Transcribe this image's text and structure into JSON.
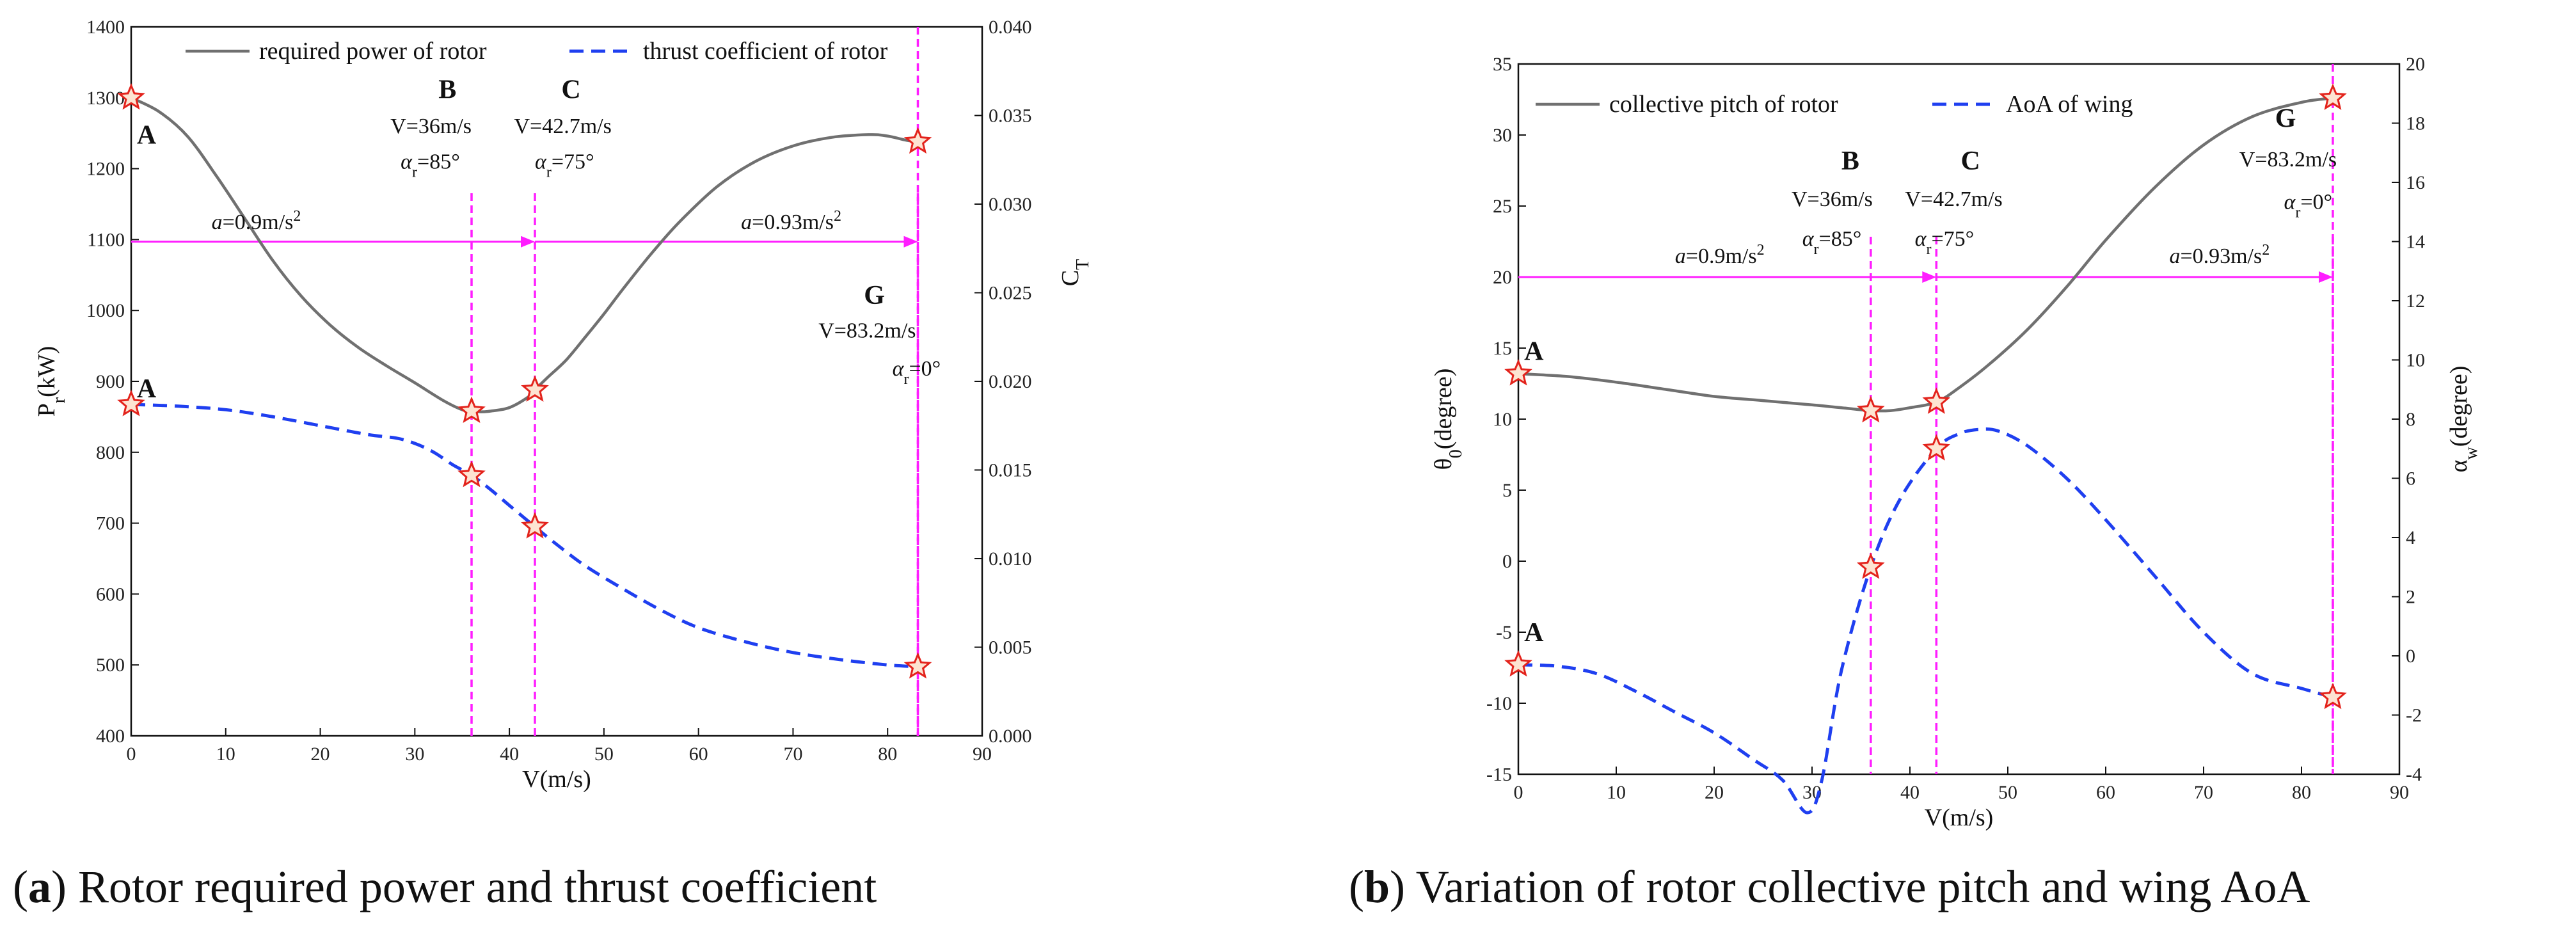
{
  "chart_data": [
    {
      "type": "line",
      "caption_letter": "a",
      "caption_text": " Rotor required power and thrust coefficient",
      "xlabel": "V(m/s)",
      "ylabel_main": "P",
      "ylabel_sub": "r",
      "ylabel_tail": "(kW)",
      "y2label_main": "C",
      "y2label_sub": "T",
      "xlim": [
        0,
        90
      ],
      "ylim": [
        400,
        1400
      ],
      "y2lim": [
        0,
        0.04
      ],
      "x_ticks": [
        "0",
        "10",
        "20",
        "30",
        "40",
        "50",
        "60",
        "70",
        "80",
        "90"
      ],
      "y_ticks": [
        "400",
        "500",
        "600",
        "700",
        "800",
        "900",
        "1000",
        "1100",
        "1200",
        "1300",
        "1400"
      ],
      "y2_ticks": [
        "0.000",
        "0.005",
        "0.010",
        "0.015",
        "0.020",
        "0.025",
        "0.030",
        "0.035",
        "0.040"
      ],
      "legend": [
        "required power of rotor",
        "thrust coefficient of rotor"
      ],
      "series": [
        {
          "name": "required power of rotor",
          "axis": "left",
          "style": "solid",
          "x": [
            0,
            3,
            6,
            9,
            12,
            15,
            18,
            21,
            24,
            27,
            30,
            33,
            35,
            36,
            37,
            38,
            40,
            42,
            42.7,
            44,
            46,
            48,
            50,
            52,
            55,
            58,
            62,
            66,
            70,
            74,
            78,
            80,
            82,
            83.2
          ],
          "y": [
            1300,
            1280,
            1245,
            1190,
            1130,
            1070,
            1020,
            980,
            948,
            922,
            898,
            873,
            860,
            858,
            857,
            858,
            863,
            878,
            888,
            905,
            930,
            962,
            995,
            1030,
            1080,
            1125,
            1175,
            1210,
            1232,
            1244,
            1248,
            1246,
            1240,
            1238
          ]
        },
        {
          "name": "thrust coefficient of rotor",
          "axis": "right",
          "style": "dashed",
          "x": [
            0,
            5,
            10,
            15,
            20,
            25,
            28,
            30,
            32,
            34,
            36,
            38,
            40,
            42.7,
            45,
            48,
            52,
            56,
            60,
            65,
            70,
            75,
            80,
            83.2
          ],
          "y": [
            0.0187,
            0.0186,
            0.0184,
            0.018,
            0.0175,
            0.017,
            0.0168,
            0.0165,
            0.016,
            0.0153,
            0.0147,
            0.0139,
            0.013,
            0.0118,
            0.0108,
            0.0096,
            0.0083,
            0.0071,
            0.0061,
            0.0053,
            0.0047,
            0.0043,
            0.004,
            0.0039
          ]
        }
      ],
      "vlines": [
        36,
        42.7,
        83.2
      ],
      "arrow": {
        "y": 1097,
        "segments": [
          [
            0,
            42.7
          ],
          [
            42.7,
            83.2
          ]
        ]
      },
      "markers": [
        {
          "x": 0,
          "y": 1300,
          "axis": "left"
        },
        {
          "x": 36,
          "y": 858,
          "axis": "left"
        },
        {
          "x": 42.7,
          "y": 888,
          "axis": "left"
        },
        {
          "x": 83.2,
          "y": 1238,
          "axis": "left"
        },
        {
          "x": 0,
          "y": 0.0187,
          "axis": "right"
        },
        {
          "x": 36,
          "y": 0.0147,
          "axis": "right"
        },
        {
          "x": 42.7,
          "y": 0.0118,
          "axis": "right"
        },
        {
          "x": 83.2,
          "y": 0.0039,
          "axis": "right"
        }
      ],
      "point_labels": [
        {
          "text": "A",
          "x": 0.6,
          "y": 1248,
          "axis": "left"
        },
        {
          "text": "A",
          "x": 0.6,
          "y": 0.0196,
          "axis": "right"
        },
        {
          "text": "B",
          "x": 32.5,
          "y": 1312,
          "axis": "left"
        },
        {
          "text": "C",
          "x": 45.5,
          "y": 1312,
          "axis": "left"
        },
        {
          "text": "G",
          "x": 77.5,
          "y": 1022,
          "axis": "left"
        }
      ],
      "annotations": [
        {
          "text": "V=36m/s",
          "x": 36,
          "y": 1250,
          "anchor": "end"
        },
        {
          "text": "V=42.7m/s",
          "x": 40.5,
          "y": 1250,
          "anchor": "start"
        },
        {
          "text": "V=83.2m/s",
          "x": 83.0,
          "y": 962,
          "anchor": "end"
        }
      ],
      "alpha_labels": [
        {
          "prefix": "α",
          "sub": "r",
          "value": "=85°",
          "x": 28.5,
          "y": 1200
        },
        {
          "prefix": "α",
          "sub": "r",
          "value": "=75°",
          "x": 42.7,
          "y": 1200
        },
        {
          "prefix": "α",
          "sub": "r",
          "value": "=0°",
          "x": 80.5,
          "y": 908
        }
      ],
      "accel_labels": [
        {
          "prefix": "a",
          "value": "=0.9m/s",
          "sup": "2",
          "x": 8.5,
          "y": 1115
        },
        {
          "prefix": "a",
          "value": "=0.93m/s",
          "sup": "2",
          "x": 64.5,
          "y": 1115
        }
      ]
    },
    {
      "type": "line",
      "caption_letter": "b",
      "caption_text": " Variation of rotor collective pitch and wing AoA",
      "xlabel": "V(m/s)",
      "ylabel_main": "θ",
      "ylabel_sub": "0",
      "ylabel_tail": "(degree)",
      "y2label_main": "α",
      "y2label_sub": "w",
      "y2label_tail": "(degree)",
      "xlim": [
        0,
        90
      ],
      "ylim": [
        -15,
        35
      ],
      "y2lim": [
        -4,
        20
      ],
      "x_ticks": [
        "0",
        "10",
        "20",
        "30",
        "40",
        "50",
        "60",
        "70",
        "80",
        "90"
      ],
      "y_ticks": [
        "-15",
        "-10",
        "-5",
        "0",
        "5",
        "10",
        "15",
        "20",
        "25",
        "30",
        "35"
      ],
      "y2_ticks": [
        "-4",
        "-2",
        "0",
        "2",
        "4",
        "6",
        "8",
        "10",
        "12",
        "14",
        "16",
        "18",
        "20"
      ],
      "legend": [
        "collective pitch of rotor",
        "AoA of wing"
      ],
      "series": [
        {
          "name": "collective pitch of rotor",
          "axis": "left",
          "style": "solid",
          "x": [
            0,
            5,
            10,
            15,
            20,
            25,
            30,
            33,
            36,
            38,
            40,
            42.7,
            45,
            48,
            52,
            56,
            60,
            65,
            70,
            75,
            80,
            83.2
          ],
          "y": [
            13.2,
            13.0,
            12.6,
            12.1,
            11.6,
            11.3,
            11.0,
            10.8,
            10.6,
            10.6,
            10.8,
            11.2,
            12.2,
            13.8,
            16.3,
            19.3,
            22.6,
            26.3,
            29.3,
            31.3,
            32.3,
            32.6
          ]
        },
        {
          "name": "AoA of wing",
          "axis": "right",
          "style": "dashed",
          "x": [
            0,
            4,
            8,
            12,
            16,
            20,
            24,
            27,
            29.5,
            31,
            33,
            36,
            39,
            42.7,
            45,
            47,
            49,
            52,
            56,
            60,
            65,
            70,
            75,
            80,
            83.2
          ],
          "y": [
            -0.3,
            -0.35,
            -0.6,
            -1.2,
            -1.9,
            -2.6,
            -3.5,
            -4.2,
            -5.3,
            -4.2,
            -0.5,
            3.0,
            5.3,
            7.0,
            7.5,
            7.65,
            7.6,
            7.1,
            6.0,
            4.6,
            2.7,
            0.8,
            -0.6,
            -1.1,
            -1.4
          ]
        }
      ],
      "vlines": [
        36,
        42.7,
        83.2
      ],
      "arrow": {
        "y": 20,
        "segments": [
          [
            0,
            42.7
          ],
          [
            42.7,
            83.2
          ]
        ]
      },
      "markers": [
        {
          "x": 0,
          "y": 13.2,
          "axis": "left"
        },
        {
          "x": 36,
          "y": 10.6,
          "axis": "left"
        },
        {
          "x": 42.7,
          "y": 11.2,
          "axis": "left"
        },
        {
          "x": 83.2,
          "y": 32.6,
          "axis": "left"
        },
        {
          "x": 0,
          "y": -0.3,
          "axis": "right"
        },
        {
          "x": 36,
          "y": 3.0,
          "axis": "right"
        },
        {
          "x": 42.7,
          "y": 7.0,
          "axis": "right"
        },
        {
          "x": 83.2,
          "y": -1.4,
          "axis": "right"
        }
      ],
      "point_labels": [
        {
          "text": "A",
          "x": 0.6,
          "y": 14.8,
          "axis": "left"
        },
        {
          "text": "A",
          "x": 0.6,
          "y": 0.8,
          "axis": "right"
        },
        {
          "text": "B",
          "x": 33.0,
          "y": 28.2,
          "axis": "left"
        },
        {
          "text": "C",
          "x": 45.2,
          "y": 28.2,
          "axis": "left"
        },
        {
          "text": "G",
          "x": 77.3,
          "y": 31.2,
          "axis": "left"
        }
      ],
      "annotations": [
        {
          "text": "V=36m/s",
          "x": 36.2,
          "y": 25.0,
          "anchor": "end"
        },
        {
          "text": "V=42.7m/s",
          "x": 39.5,
          "y": 25.0,
          "anchor": "start"
        },
        {
          "text": "V=83.2m/s",
          "x": 83.6,
          "y": 27.8,
          "anchor": "end"
        }
      ],
      "alpha_labels": [
        {
          "prefix": "α",
          "sub": "r",
          "value": "=85°",
          "x": 29.0,
          "y": 22.2
        },
        {
          "prefix": "α",
          "sub": "r",
          "value": "=75°",
          "x": 40.5,
          "y": 22.2
        },
        {
          "prefix": "α",
          "sub": "r",
          "value": "=0°",
          "x": 78.2,
          "y": 24.8
        }
      ],
      "accel_labels": [
        {
          "prefix": "a",
          "value": "=0.9m/s",
          "sup": "2",
          "x": 16.0,
          "y": 21.0
        },
        {
          "prefix": "a",
          "value": "=0.93m/s",
          "sup": "2",
          "x": 66.5,
          "y": 21.0
        }
      ]
    }
  ],
  "colors": {
    "series_solid": "#707070",
    "series_dashed": "#1f3ff0",
    "guide": "#ff1dff",
    "marker_stroke": "#e3231c",
    "marker_fill": "#fde4d2",
    "axis": "#111111"
  }
}
